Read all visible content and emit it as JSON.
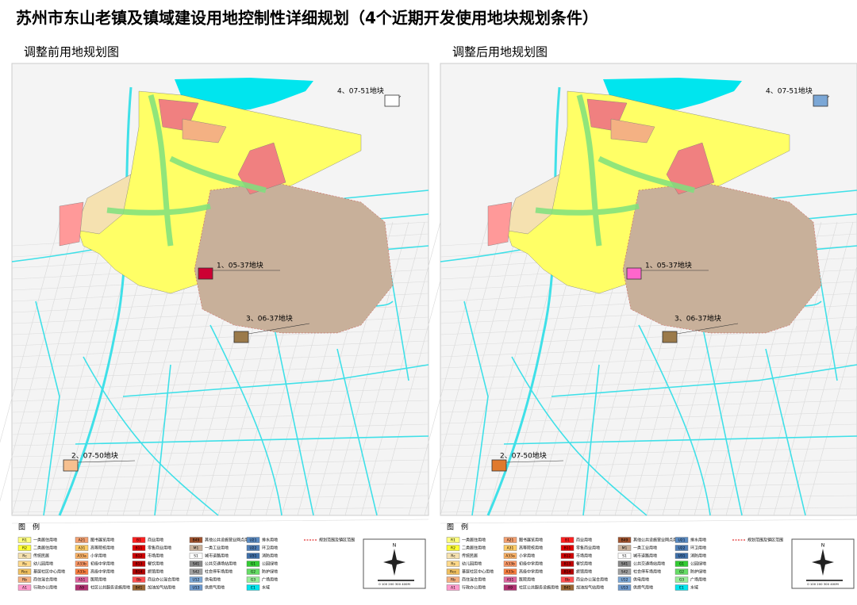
{
  "header": {
    "title": "苏州市东山老镇及镇域建设用地控制性详细规划（4个近期开发使用地块规划条件）"
  },
  "panels": [
    {
      "subtitle": "调整前用地规划图",
      "plots": [
        "4、07-51地块",
        "1、05-37地块",
        "3、06-37地块",
        "2、07-50地块"
      ]
    },
    {
      "subtitle": "调整后用地规划图",
      "plots": [
        "4、07-51地块",
        "1、05-37地块",
        "3、06-37地块",
        "2、07-50地块"
      ]
    }
  ],
  "legend": {
    "title": "图　例",
    "items": [
      {
        "code": "R1",
        "name": "一类居住用地",
        "color": "#ffff80"
      },
      {
        "code": "R2",
        "name": "二类居住用地",
        "color": "#ffff33"
      },
      {
        "code": "Rc",
        "name": "传统民居",
        "color": "#f5e1b0"
      },
      {
        "code": "Rs",
        "name": "幼儿园用地",
        "color": "#ffd98a"
      },
      {
        "code": "Rcc",
        "name": "基层社区中心用地",
        "color": "#f0c060"
      },
      {
        "code": "Rb",
        "name": "商住混合用地",
        "color": "#f4b183"
      },
      {
        "code": "A1",
        "name": "行政办公用地",
        "color": "#ff99cc"
      },
      {
        "code": "A21",
        "name": "图书展览用地",
        "color": "#f4a070"
      },
      {
        "code": "A31",
        "name": "高等院校用地",
        "color": "#ffcc66"
      },
      {
        "code": "A33a",
        "name": "小学用地",
        "color": "#ffb366"
      },
      {
        "code": "A33b",
        "name": "初级中学用地",
        "color": "#ff9966"
      },
      {
        "code": "A33c",
        "name": "高级中学用地",
        "color": "#ff8040"
      },
      {
        "code": "A51",
        "name": "医院用地",
        "color": "#e066a0"
      },
      {
        "code": "A9",
        "name": "社区公共服务设施用地",
        "color": "#b03070"
      },
      {
        "code": "B1",
        "name": "商业用地",
        "color": "#ff2020"
      },
      {
        "code": "B11",
        "name": "零售商业用地",
        "color": "#e00000"
      },
      {
        "code": "B12",
        "name": "市场用地",
        "color": "#d00000"
      },
      {
        "code": "B13",
        "name": "餐饮用地",
        "color": "#c00000"
      },
      {
        "code": "B14",
        "name": "旅馆用地",
        "color": "#b00000"
      },
      {
        "code": "Bb",
        "name": "商业办公混合用地",
        "color": "#ff5050"
      },
      {
        "code": "B41",
        "name": "加油加气站用地",
        "color": "#996633"
      },
      {
        "code": "B49",
        "name": "其他公共设施营业网点用地",
        "color": "#a0522d"
      },
      {
        "code": "M1",
        "name": "一类工业用地",
        "color": "#c8b09a"
      },
      {
        "code": "S1",
        "name": "城市道路用地",
        "color": "#ffffff"
      },
      {
        "code": "S41",
        "name": "公共交通场站用地",
        "color": "#888888"
      },
      {
        "code": "S42",
        "name": "社会停车场用地",
        "color": "#a0a0a0"
      },
      {
        "code": "U12",
        "name": "供电用地",
        "color": "#7ba7d6"
      },
      {
        "code": "U13",
        "name": "供燃气用地",
        "color": "#6c98cc"
      },
      {
        "code": "U21",
        "name": "排水用地",
        "color": "#5b8cc4"
      },
      {
        "code": "U22",
        "name": "环卫用地",
        "color": "#4f7fb8"
      },
      {
        "code": "U31",
        "name": "消防用地",
        "color": "#3f70aa"
      },
      {
        "code": "G1",
        "name": "公园绿地",
        "color": "#33cc33"
      },
      {
        "code": "G2",
        "name": "防护绿地",
        "color": "#66dd66"
      },
      {
        "code": "G3",
        "name": "广场用地",
        "color": "#99ee99"
      },
      {
        "code": "E1",
        "name": "水域",
        "color": "#00e5ee"
      }
    ],
    "boundary": "规划范围及镇区范围"
  },
  "compass": {
    "north": "N",
    "scale": "0  100  200  300  400M"
  }
}
